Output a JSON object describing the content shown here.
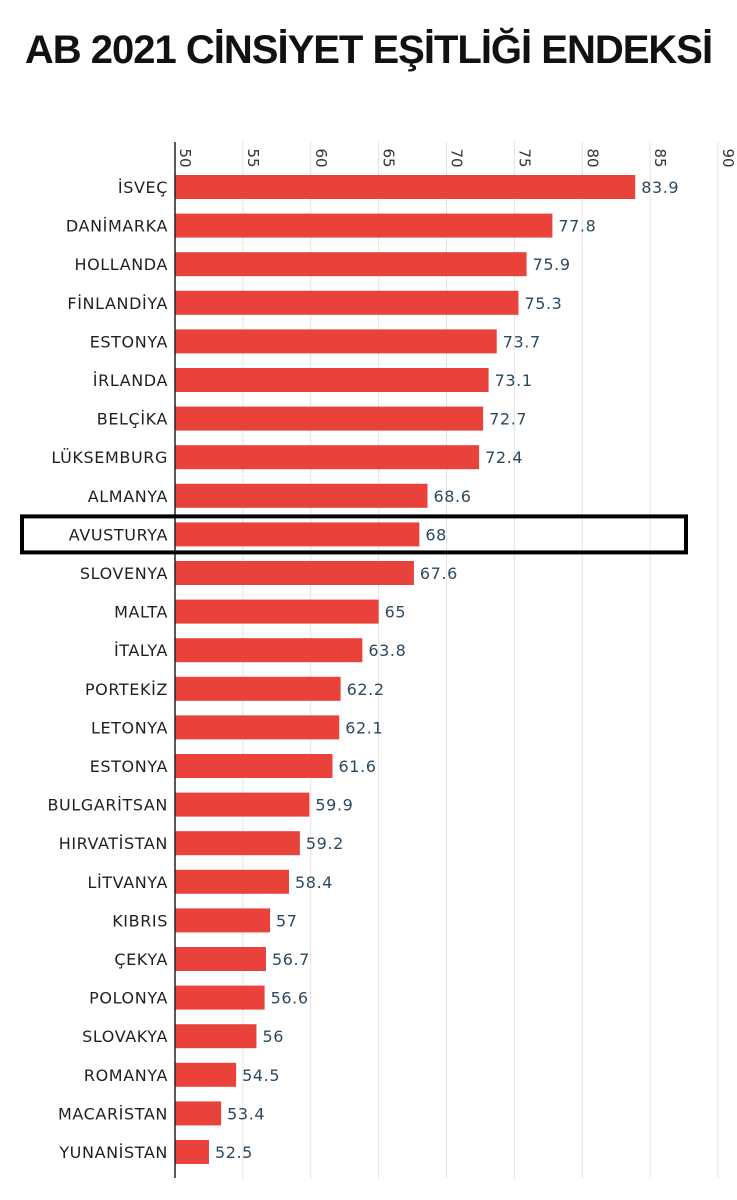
{
  "chart_data": {
    "type": "bar",
    "orientation": "horizontal",
    "title": "AB 2021 CİNSİYET EŞİTLİĞİ ENDEKSİ",
    "categories": [
      "İSVEÇ",
      "DANİMARKA",
      "HOLLANDA",
      "FİNLANDİYA",
      "ESTONYA",
      "İRLANDA",
      "BELÇİKA",
      "LÜKSEMBURG",
      "ALMANYA",
      "AVUSTURYA",
      "SLOVENYA",
      "MALTA",
      "İTALYA",
      "PORTEKİZ",
      "LETONYA",
      "ESTONYA",
      "BULGARİTSAN",
      "HIRVATİSTAN",
      "LİTVANYA",
      "KIBRIS",
      "ÇEKYA",
      "POLONYA",
      "SLOVAKYA",
      "ROMANYA",
      "MACARİSTAN",
      "YUNANİSTAN"
    ],
    "values": [
      83.9,
      77.8,
      75.9,
      75.3,
      73.7,
      73.1,
      72.7,
      72.4,
      68.6,
      68,
      67.6,
      65,
      63.8,
      62.2,
      62.1,
      61.6,
      59.9,
      59.2,
      58.4,
      57,
      56.7,
      56.6,
      56,
      54.5,
      53.4,
      52.5
    ],
    "value_labels": [
      "83.9",
      "77.8",
      "75.9",
      "75.3",
      "73.7",
      "73.1",
      "72.7",
      "72.4",
      "68.6",
      "68",
      "67.6",
      "65",
      "63.8",
      "62.2",
      "62.1",
      "61.6",
      "59.9",
      "59.2",
      "58.4",
      "57",
      "56.7",
      "56.6",
      "56",
      "54.5",
      "53.4",
      "52.5"
    ],
    "xlim": [
      50,
      90
    ],
    "xticks": [
      50,
      55,
      60,
      65,
      70,
      75,
      80,
      85,
      90
    ],
    "tick_labels": [
      "50",
      "55",
      "60",
      "65",
      "70",
      "75",
      "80",
      "85",
      "90"
    ],
    "tick_label_orientation": "rotated-90",
    "axis_position": "top",
    "grid": true,
    "highlighted_category": "AVUSTURYA",
    "colors": {
      "bar": "#e8423a",
      "value_label": "#2c4a5e",
      "grid": "#e2e2e2",
      "axis": "#222222",
      "highlight_box": "#000000"
    }
  }
}
